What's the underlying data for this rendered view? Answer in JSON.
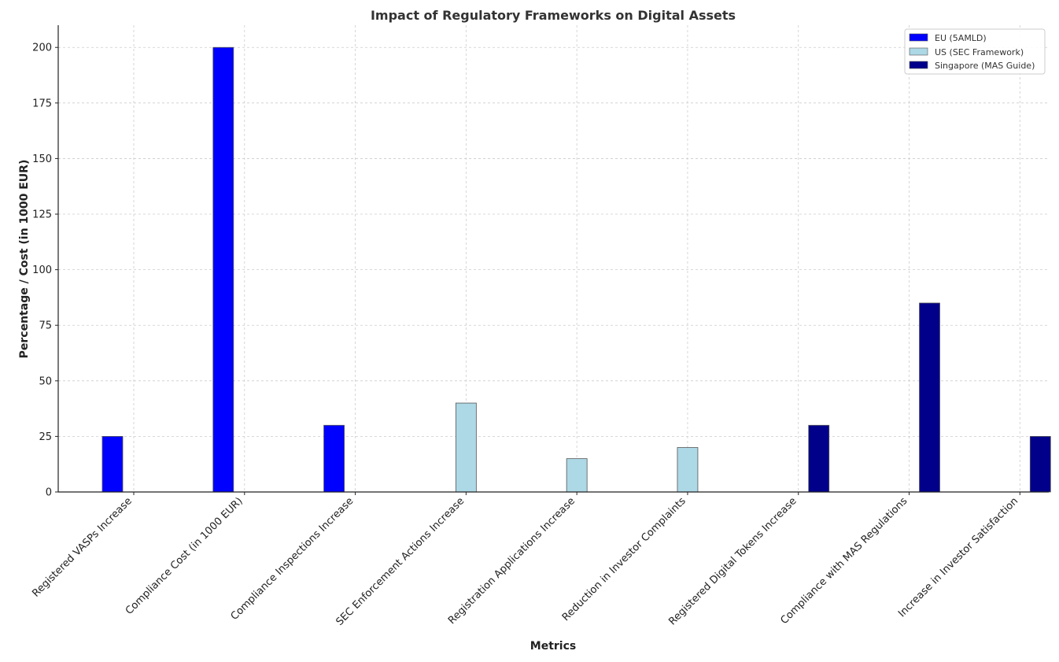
{
  "chart_data": {
    "type": "bar",
    "title": "Impact of Regulatory Frameworks on Digital Assets",
    "xlabel": "Metrics",
    "ylabel": "Percentage / Cost (in 1000 EUR)",
    "ylim": [
      0,
      210
    ],
    "yticks": [
      0,
      25,
      50,
      75,
      100,
      125,
      150,
      175,
      200
    ],
    "grid": true,
    "legend_position": "top-right",
    "categories": [
      "Registered VASPs Increase",
      "Compliance Cost (in 1000 EUR)",
      "Compliance Inspections Increase",
      "SEC Enforcement Actions Increase",
      "Registration Applications Increase",
      "Reduction in Investor Complaints",
      "Registered Digital Tokens Increase",
      "Compliance with MAS Regulations",
      "Increase in Investor Satisfaction"
    ],
    "series": [
      {
        "name": "EU (5AMLD)",
        "color": "#0000ff",
        "values": [
          25,
          200,
          30,
          0,
          0,
          0,
          0,
          0,
          0
        ]
      },
      {
        "name": "US (SEC Framework)",
        "color": "#add8e6",
        "values": [
          0,
          0,
          0,
          40,
          15,
          20,
          0,
          0,
          0
        ]
      },
      {
        "name": "Singapore (MAS Guide)",
        "color": "#00008b",
        "values": [
          0,
          0,
          0,
          0,
          0,
          0,
          30,
          85,
          25
        ]
      }
    ]
  }
}
